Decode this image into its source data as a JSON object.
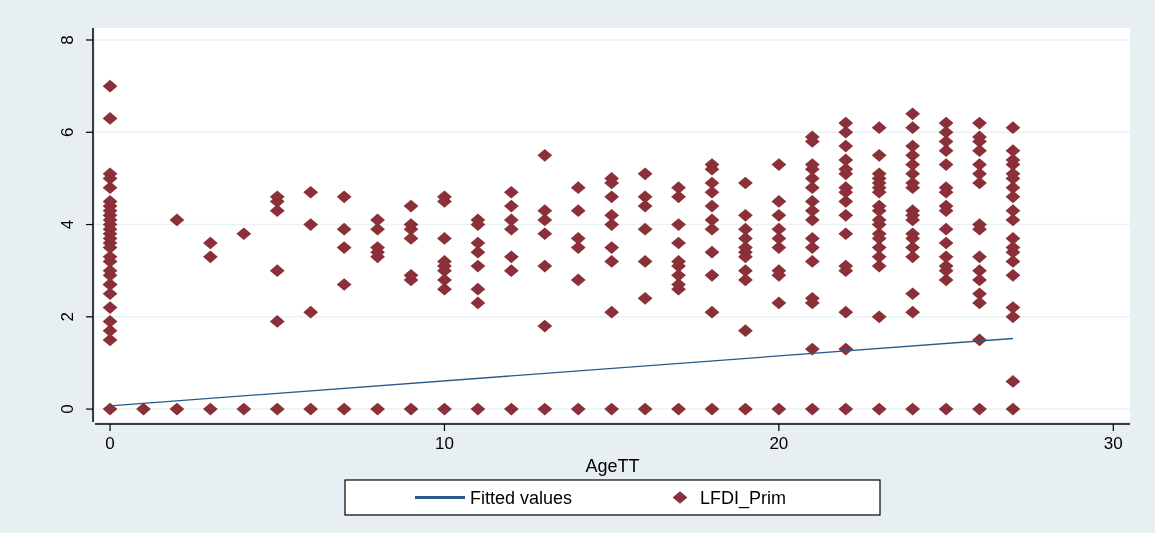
{
  "chart_data": {
    "type": "scatter",
    "xlabel": "AgeTT",
    "xlim": [
      -0.45,
      30.5
    ],
    "xticks": [
      0,
      10,
      20,
      30
    ],
    "ylim": [
      -0.28,
      8.26
    ],
    "yticks": [
      0,
      2,
      4,
      6,
      8
    ],
    "grid": "y",
    "legend": "bottom",
    "series": [
      {
        "name": "Fitted values",
        "type": "line",
        "color": "#2a5a8a",
        "line_style": "solid",
        "x": [
          0,
          27
        ],
        "values": [
          0.07,
          1.53
        ]
      },
      {
        "name": "LFDI_Prim",
        "marker": "diamond",
        "color": "#8b3039",
        "x": [
          0,
          0,
          0,
          0,
          0,
          0,
          0,
          0,
          0,
          0,
          0,
          0,
          0,
          0,
          0,
          0,
          0,
          0,
          0,
          0,
          0,
          0,
          0,
          0,
          0,
          0,
          0,
          0,
          1,
          2,
          2,
          3,
          3,
          3,
          4,
          4,
          5,
          5,
          5,
          5,
          5,
          5,
          6,
          6,
          6,
          6,
          7,
          7,
          7,
          7,
          7,
          8,
          8,
          8,
          8,
          8,
          8,
          9,
          9,
          9,
          9,
          9,
          9,
          9,
          10,
          10,
          10,
          10,
          10,
          10,
          10,
          10,
          10,
          11,
          11,
          11,
          11,
          11,
          11,
          11,
          11,
          12,
          12,
          12,
          12,
          12,
          12,
          12,
          13,
          13,
          13,
          13,
          13,
          13,
          13,
          14,
          14,
          14,
          14,
          14,
          14,
          15,
          15,
          15,
          15,
          15,
          15,
          15,
          15,
          15,
          16,
          16,
          16,
          16,
          16,
          16,
          16,
          17,
          17,
          17,
          17,
          17,
          17,
          17,
          17,
          17,
          17,
          18,
          18,
          18,
          18,
          18,
          18,
          18,
          18,
          18,
          18,
          18,
          19,
          19,
          19,
          19,
          19,
          19,
          19,
          19,
          19,
          19,
          19,
          20,
          20,
          20,
          20,
          20,
          20,
          20,
          20,
          20,
          20,
          21,
          21,
          21,
          21,
          21,
          21,
          21,
          21,
          21,
          21,
          21,
          21,
          21,
          21,
          21,
          21,
          22,
          22,
          22,
          22,
          22,
          22,
          22,
          22,
          22,
          22,
          22,
          22,
          22,
          22,
          22,
          22,
          23,
          23,
          23,
          23,
          23,
          23,
          23,
          23,
          23,
          23,
          23,
          23,
          23,
          23,
          23,
          23,
          23,
          23,
          24,
          24,
          24,
          24,
          24,
          24,
          24,
          24,
          24,
          24,
          24,
          24,
          24,
          24,
          24,
          24,
          24,
          24,
          25,
          25,
          25,
          25,
          25,
          25,
          25,
          25,
          25,
          25,
          25,
          25,
          25,
          25,
          25,
          25,
          26,
          26,
          26,
          26,
          26,
          26,
          26,
          26,
          26,
          26,
          26,
          26,
          26,
          26,
          26,
          26,
          27,
          27,
          27,
          27,
          27,
          27,
          27,
          27,
          27,
          27,
          27,
          27,
          27,
          27,
          27,
          27,
          27,
          27,
          27
        ],
        "values": [
          7.0,
          6.3,
          5.1,
          5.0,
          4.8,
          4.5,
          4.4,
          4.3,
          4.2,
          4.1,
          4.0,
          3.9,
          3.8,
          3.7,
          3.6,
          3.5,
          3.3,
          3.2,
          3.0,
          2.9,
          2.7,
          2.7,
          2.5,
          2.2,
          1.9,
          1.7,
          1.5,
          0,
          0,
          4.1,
          0,
          3.6,
          3.3,
          0,
          3.8,
          0,
          4.6,
          4.5,
          4.3,
          3.0,
          1.9,
          0,
          4.7,
          4.0,
          2.1,
          0,
          4.6,
          3.9,
          3.5,
          2.7,
          0,
          4.1,
          3.9,
          3.5,
          3.4,
          3.3,
          0,
          4.4,
          4.0,
          3.9,
          3.7,
          2.9,
          2.8,
          0,
          4.6,
          4.5,
          3.7,
          3.2,
          3.1,
          3.0,
          2.8,
          2.6,
          0,
          4.1,
          4.0,
          3.6,
          3.4,
          3.1,
          2.6,
          2.3,
          0,
          4.7,
          4.4,
          4.1,
          3.9,
          3.3,
          3.0,
          0,
          5.5,
          4.3,
          4.1,
          3.8,
          3.1,
          1.8,
          0,
          4.8,
          4.3,
          3.7,
          3.5,
          2.8,
          0,
          5.0,
          4.9,
          4.6,
          4.2,
          4.0,
          3.5,
          3.2,
          2.1,
          0,
          5.1,
          4.6,
          4.4,
          3.9,
          3.2,
          2.4,
          0,
          4.8,
          4.6,
          4.0,
          3.6,
          3.2,
          3.1,
          2.9,
          2.7,
          2.6,
          0,
          5.3,
          5.2,
          4.9,
          4.7,
          4.4,
          4.1,
          3.9,
          3.4,
          2.9,
          2.1,
          0,
          4.9,
          4.2,
          3.9,
          3.7,
          3.5,
          3.4,
          3.3,
          3.0,
          2.8,
          1.7,
          0,
          5.3,
          4.5,
          4.2,
          3.9,
          3.7,
          3.5,
          3.0,
          2.9,
          2.3,
          0,
          5.9,
          5.8,
          5.3,
          5.2,
          5.0,
          4.8,
          4.5,
          4.3,
          4.1,
          3.7,
          3.5,
          3.2,
          2.4,
          2.3,
          1.3,
          0,
          6.2,
          6.0,
          5.7,
          5.4,
          5.2,
          5.1,
          4.8,
          4.7,
          4.5,
          4.2,
          3.8,
          3.1,
          3.0,
          2.1,
          1.3,
          0,
          6.1,
          5.5,
          5.1,
          5.0,
          4.9,
          4.8,
          4.7,
          4.4,
          4.3,
          4.1,
          4.0,
          3.8,
          3.7,
          3.5,
          3.3,
          3.1,
          2.0,
          0,
          6.4,
          6.1,
          5.7,
          5.5,
          5.3,
          5.1,
          4.9,
          4.8,
          4.3,
          4.2,
          4.1,
          3.8,
          3.7,
          3.5,
          3.3,
          2.5,
          2.1,
          0,
          6.2,
          6.0,
          5.8,
          5.6,
          5.3,
          4.8,
          4.7,
          4.4,
          4.3,
          3.9,
          3.6,
          3.3,
          3.1,
          3.0,
          2.8,
          0,
          6.2,
          5.9,
          5.8,
          5.6,
          5.3,
          5.1,
          4.9,
          4.0,
          3.9,
          3.3,
          3.0,
          2.8,
          2.5,
          2.3,
          1.5,
          0,
          6.1,
          5.6,
          5.4,
          5.3,
          5.1,
          5.0,
          4.8,
          4.6,
          4.3,
          4.1,
          3.7,
          3.5,
          3.4,
          3.2,
          2.9,
          2.2,
          2.0,
          0.6,
          0
        ]
      }
    ]
  }
}
